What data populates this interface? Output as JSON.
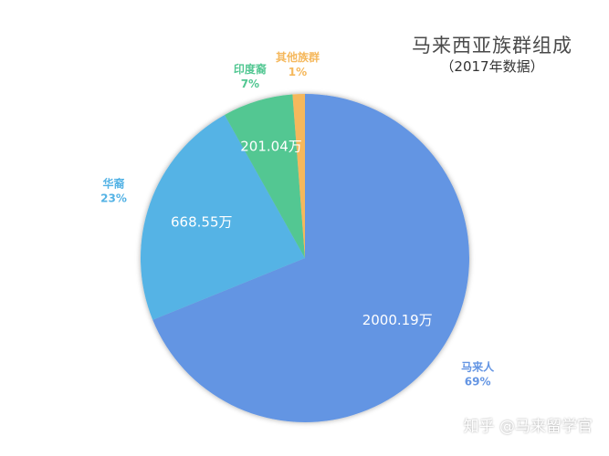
{
  "chart_data": {
    "type": "pie",
    "title": "马来西亚族群组成",
    "subtitle": "（2017年数据）",
    "slices": [
      {
        "name": "马来人",
        "value": 2000.19,
        "value_label": "2000.19万",
        "percent_label": "69%",
        "color": "#6495e3"
      },
      {
        "name": "华裔",
        "value": 668.55,
        "value_label": "668.55万",
        "percent_label": "23%",
        "color": "#55b3e5"
      },
      {
        "name": "印度裔",
        "value": 201.04,
        "value_label": "201.04万",
        "percent_label": "7%",
        "color": "#52c792"
      },
      {
        "name": "其他族群",
        "value": 35,
        "value_label": "",
        "percent_label": "1%",
        "color": "#f5b85c"
      }
    ],
    "direction": "clockwise-from-top"
  },
  "watermark": "知乎 @马来留学官"
}
